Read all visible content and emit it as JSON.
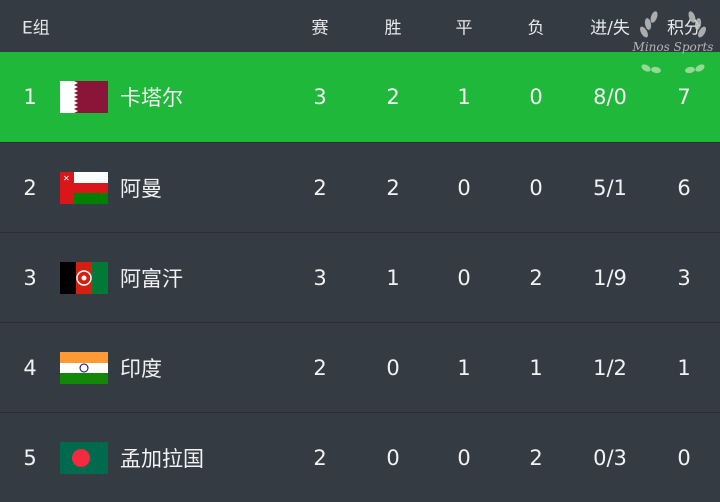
{
  "header": {
    "group": "E组",
    "cols": [
      "赛",
      "胜",
      "平",
      "负",
      "进/失",
      "积分"
    ]
  },
  "watermark": "Minos Sports",
  "colors": {
    "background": "#353b43",
    "highlight": "#1fb83b"
  },
  "rows": [
    {
      "rank": "1",
      "team": "卡塔尔",
      "flag": "qatar-flag",
      "p": "3",
      "w": "2",
      "d": "1",
      "l": "0",
      "gd": "8/0",
      "pts": "7"
    },
    {
      "rank": "2",
      "team": "阿曼",
      "flag": "oman-flag",
      "p": "2",
      "w": "2",
      "d": "0",
      "l": "0",
      "gd": "5/1",
      "pts": "6"
    },
    {
      "rank": "3",
      "team": "阿富汗",
      "flag": "afghanistan-flag",
      "p": "3",
      "w": "1",
      "d": "0",
      "l": "2",
      "gd": "1/9",
      "pts": "3"
    },
    {
      "rank": "4",
      "team": "印度",
      "flag": "india-flag",
      "p": "2",
      "w": "0",
      "d": "1",
      "l": "1",
      "gd": "1/2",
      "pts": "1"
    },
    {
      "rank": "5",
      "team": "孟加拉国",
      "flag": "bangladesh-flag",
      "p": "2",
      "w": "0",
      "d": "0",
      "l": "2",
      "gd": "0/3",
      "pts": "0"
    }
  ]
}
